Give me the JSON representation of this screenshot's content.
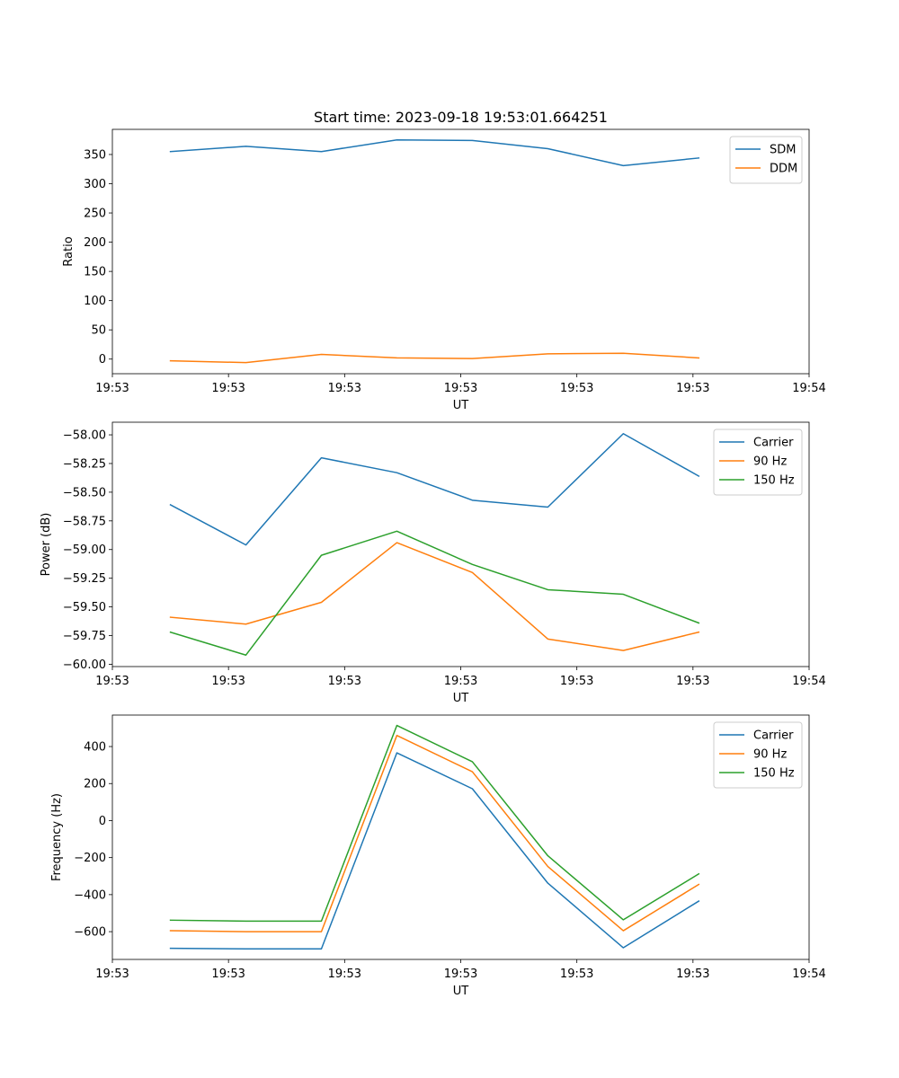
{
  "figure": {
    "title": "Start time: 2023-09-18 19:53:01.664251"
  },
  "colors": {
    "blue": "#1f77b4",
    "orange": "#ff7f0e",
    "green": "#2ca02c"
  },
  "chart_data": [
    {
      "id": "ratio",
      "type": "line",
      "title": "Start time: 2023-09-18 19:53:01.664251",
      "xlabel": "UT",
      "ylabel": "Ratio",
      "xlim": [
        0,
        6
      ],
      "ylim": [
        -25,
        393
      ],
      "xtick_positions": [
        0,
        1,
        2,
        3,
        4,
        5,
        6
      ],
      "xtick_labels": [
        "19:53",
        "19:53",
        "19:53",
        "19:53",
        "19:53",
        "19:53",
        "19:54"
      ],
      "yticks": [
        0,
        50,
        100,
        150,
        200,
        250,
        300,
        350
      ],
      "ytick_labels": [
        "0",
        "50",
        "100",
        "150",
        "200",
        "250",
        "300",
        "350"
      ],
      "legend_position": "top-right",
      "x": [
        0.5,
        1.15,
        1.8,
        2.45,
        3.1,
        3.75,
        4.4,
        5.05
      ],
      "series": [
        {
          "name": "SDM",
          "color": "#1f77b4",
          "values": [
            355,
            364,
            355,
            375,
            374,
            360,
            331,
            344
          ]
        },
        {
          "name": "DDM",
          "color": "#ff7f0e",
          "values": [
            -3,
            -6,
            8,
            2,
            1,
            9,
            10,
            2
          ]
        }
      ]
    },
    {
      "id": "power",
      "type": "line",
      "xlabel": "UT",
      "ylabel": "Power (dB)",
      "xlim": [
        0,
        6
      ],
      "ylim": [
        -60.02,
        -57.89
      ],
      "xtick_positions": [
        0,
        1,
        2,
        3,
        4,
        5,
        6
      ],
      "xtick_labels": [
        "19:53",
        "19:53",
        "19:53",
        "19:53",
        "19:53",
        "19:53",
        "19:54"
      ],
      "yticks": [
        -60.0,
        -59.75,
        -59.5,
        -59.25,
        -59.0,
        -58.75,
        -58.5,
        -58.25,
        -58.0
      ],
      "ytick_labels": [
        "−60.00",
        "−59.75",
        "−59.50",
        "−59.25",
        "−59.00",
        "−58.75",
        "−58.50",
        "−58.25",
        "−58.00"
      ],
      "legend_position": "top-right",
      "x": [
        0.5,
        1.15,
        1.8,
        2.45,
        3.1,
        3.75,
        4.4,
        5.05
      ],
      "series": [
        {
          "name": "Carrier",
          "color": "#1f77b4",
          "values": [
            -58.61,
            -58.96,
            -58.2,
            -58.33,
            -58.57,
            -58.63,
            -57.99,
            -58.36
          ]
        },
        {
          "name": "90 Hz",
          "color": "#ff7f0e",
          "values": [
            -59.59,
            -59.65,
            -59.46,
            -58.94,
            -59.2,
            -59.78,
            -59.88,
            -59.72
          ]
        },
        {
          "name": "150 Hz",
          "color": "#2ca02c",
          "values": [
            -59.72,
            -59.92,
            -59.05,
            -58.84,
            -59.13,
            -59.35,
            -59.39,
            -59.64
          ]
        }
      ]
    },
    {
      "id": "frequency",
      "type": "line",
      "xlabel": "UT",
      "ylabel": "Frequency (Hz)",
      "xlim": [
        0,
        6
      ],
      "ylim": [
        -750,
        570
      ],
      "xtick_positions": [
        0,
        1,
        2,
        3,
        4,
        5,
        6
      ],
      "xtick_labels": [
        "19:53",
        "19:53",
        "19:53",
        "19:53",
        "19:53",
        "19:53",
        "19:54"
      ],
      "yticks": [
        -600,
        -400,
        -200,
        0,
        200,
        400
      ],
      "ytick_labels": [
        "−600",
        "−400",
        "−200",
        "0",
        "200",
        "400"
      ],
      "legend_position": "top-right",
      "x": [
        0.5,
        1.15,
        1.8,
        2.45,
        3.1,
        3.75,
        4.4,
        5.05
      ],
      "series": [
        {
          "name": "Carrier",
          "color": "#1f77b4",
          "values": [
            -690,
            -693,
            -693,
            366,
            172,
            -338,
            -687,
            -435
          ]
        },
        {
          "name": "90 Hz",
          "color": "#ff7f0e",
          "values": [
            -595,
            -600,
            -600,
            460,
            264,
            -248,
            -595,
            -345
          ]
        },
        {
          "name": "150 Hz",
          "color": "#2ca02c",
          "values": [
            -538,
            -543,
            -543,
            514,
            318,
            -190,
            -536,
            -288
          ]
        }
      ]
    }
  ]
}
